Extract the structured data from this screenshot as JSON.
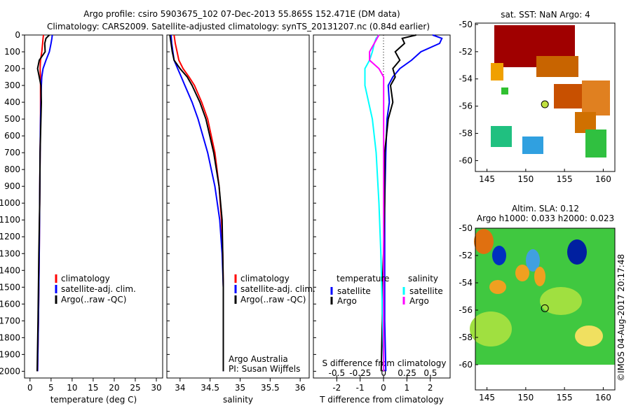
{
  "title_line1": "Argo profile: csiro 5903675_102 07-Dec-2013 55.865S 152.471E (DM data)",
  "title_line2": "Climatology: CARS2009. Satellite-adjusted climatology: synTS_20131207.nc (0.84d earlier)",
  "credit": "©IMOS 04-Aug-2017 20:17:48",
  "colors": {
    "climatology": "#ff0000",
    "satellite": "#0000ff",
    "argo": "#000000",
    "s_satellite": "#00ffff",
    "s_argo": "#ff00ff"
  },
  "chart_data": [
    {
      "type": "line",
      "xlabel": "temperature (deg C)",
      "ylabel": "",
      "xlim": [
        -1.3,
        31.5
      ],
      "ylim": [
        2040,
        0
      ],
      "xticks": [
        0,
        5,
        10,
        15,
        20,
        25,
        30
      ],
      "yticks": [
        0,
        100,
        200,
        300,
        400,
        500,
        600,
        700,
        800,
        900,
        1000,
        1100,
        1200,
        1300,
        1400,
        1500,
        1600,
        1700,
        1800,
        1900,
        2000
      ],
      "legend": [
        "climatology",
        "satellite-adj. clim.",
        "Argo(..raw -QC)"
      ],
      "depth": [
        0,
        20,
        50,
        100,
        150,
        200,
        250,
        300,
        400,
        500,
        700,
        1000,
        1300,
        1500,
        1700,
        2000
      ],
      "series": [
        {
          "name": "climatology",
          "values": [
            3.2,
            3.1,
            3.0,
            2.8,
            2.5,
            2.4,
            2.5,
            2.5,
            2.5,
            2.5,
            2.4,
            2.3,
            2.2,
            2.1,
            2.0,
            1.8
          ]
        },
        {
          "name": "satellite-adj. clim.",
          "values": [
            5.3,
            5.2,
            5.0,
            4.6,
            3.8,
            3.1,
            2.8,
            2.7,
            2.6,
            2.5,
            2.4,
            2.3,
            2.2,
            2.1,
            2.0,
            1.8
          ]
        },
        {
          "name": "Argo(..raw -QC)",
          "values": [
            4.6,
            3.8,
            3.5,
            3.6,
            2.2,
            1.8,
            2.2,
            2.6,
            2.7,
            2.6,
            2.4,
            2.3,
            2.1,
            2.0,
            1.9,
            1.7
          ]
        }
      ]
    },
    {
      "type": "line",
      "xlabel": "salinity",
      "xlim": [
        33.78,
        36.15
      ],
      "ylim": [
        2040,
        0
      ],
      "xticks": [
        34,
        34.5,
        35,
        35.5,
        36
      ],
      "legend": [
        "climatology",
        "satellite-adj. clim.",
        "Argo(..raw -QC)"
      ],
      "annotation": [
        "Argo Australia",
        "PI: Susan Wijffels"
      ],
      "depth": [
        0,
        50,
        100,
        150,
        200,
        250,
        300,
        400,
        500,
        700,
        900,
        1100,
        1300,
        1500,
        1700,
        2000
      ],
      "series": [
        {
          "name": "climatology",
          "values": [
            33.9,
            33.92,
            33.95,
            33.98,
            34.05,
            34.15,
            34.24,
            34.36,
            34.46,
            34.58,
            34.65,
            34.69,
            34.71,
            34.72,
            34.72,
            34.72
          ]
        },
        {
          "name": "satellite-adj. clim.",
          "values": [
            33.85,
            33.86,
            33.88,
            33.9,
            33.96,
            34.02,
            34.08,
            34.2,
            34.3,
            34.46,
            34.58,
            34.66,
            34.7,
            34.72,
            34.72,
            34.72
          ]
        },
        {
          "name": "Argo(..raw -QC)",
          "values": [
            33.83,
            33.85,
            33.87,
            33.9,
            34.0,
            34.12,
            34.2,
            34.33,
            34.43,
            34.56,
            34.65,
            34.7,
            34.71,
            34.72,
            34.72,
            34.72
          ]
        }
      ]
    },
    {
      "type": "line",
      "xlabel": "T difference from climatology",
      "x2label": "S difference from climatology",
      "xlim": [
        -3.0,
        2.85
      ],
      "x2lim": [
        -0.75,
        0.71
      ],
      "ylim": [
        2040,
        0
      ],
      "xticks": [
        -2,
        -1,
        0,
        1,
        2
      ],
      "x2ticks": [
        -0.5,
        -0.25,
        0,
        0.25,
        0.5
      ],
      "legend_t_title": "temperature",
      "legend_s_title": "salinity",
      "legend": [
        "satellite",
        "Argo",
        "satellite",
        "Argo"
      ],
      "depth": [
        0,
        20,
        50,
        100,
        150,
        200,
        250,
        300,
        400,
        500,
        700,
        1000,
        1300,
        1500,
        1700,
        2000
      ],
      "series": [
        {
          "name": "T satellite",
          "values": [
            2.1,
            2.5,
            2.4,
            1.6,
            1.2,
            0.7,
            0.4,
            0.2,
            0.25,
            0.15,
            0.1,
            0.05,
            0.05,
            0.05,
            0.05,
            0.1
          ]
        },
        {
          "name": "T Argo",
          "values": [
            1.4,
            0.8,
            0.9,
            0.5,
            0.7,
            0.4,
            0.5,
            0.3,
            0.4,
            0.2,
            0.05,
            0.05,
            0.0,
            -0.05,
            -0.05,
            -0.1
          ]
        },
        {
          "name": "S satellite",
          "values": [
            -0.05,
            -0.08,
            -0.1,
            -0.12,
            -0.15,
            -0.2,
            -0.2,
            -0.2,
            -0.16,
            -0.12,
            -0.08,
            -0.05,
            -0.03,
            -0.02,
            -0.01,
            0.0
          ]
        },
        {
          "name": "S Argo",
          "values": [
            -0.05,
            -0.07,
            -0.1,
            -0.15,
            -0.15,
            -0.05,
            0.0,
            0.0,
            0.0,
            0.0,
            0.0,
            0.0,
            0.0,
            0.0,
            0.0,
            0.0
          ]
        }
      ]
    },
    {
      "type": "heatmap",
      "title": "sat. SST: NaN Argo: 4",
      "xlim": [
        143.5,
        161.5
      ],
      "ylim": [
        -60.8,
        -49.9
      ],
      "xticks": [
        145,
        150,
        155,
        160
      ],
      "yticks": [
        -50,
        -52,
        -54,
        -56,
        -58,
        -60
      ],
      "marker": [
        152.471,
        -55.865
      ]
    },
    {
      "type": "heatmap",
      "title": "Altim. SLA: 0.12",
      "subtitle": "Argo h1000: 0.033 h2000: 0.023",
      "xlim": [
        143.5,
        161.5
      ],
      "ylim": [
        -60,
        -50
      ],
      "xticks": [
        145,
        150,
        155,
        160
      ],
      "yticks": [
        -50,
        -52,
        -54,
        -56,
        -58,
        -60
      ],
      "marker": [
        152.471,
        -55.865
      ]
    }
  ]
}
